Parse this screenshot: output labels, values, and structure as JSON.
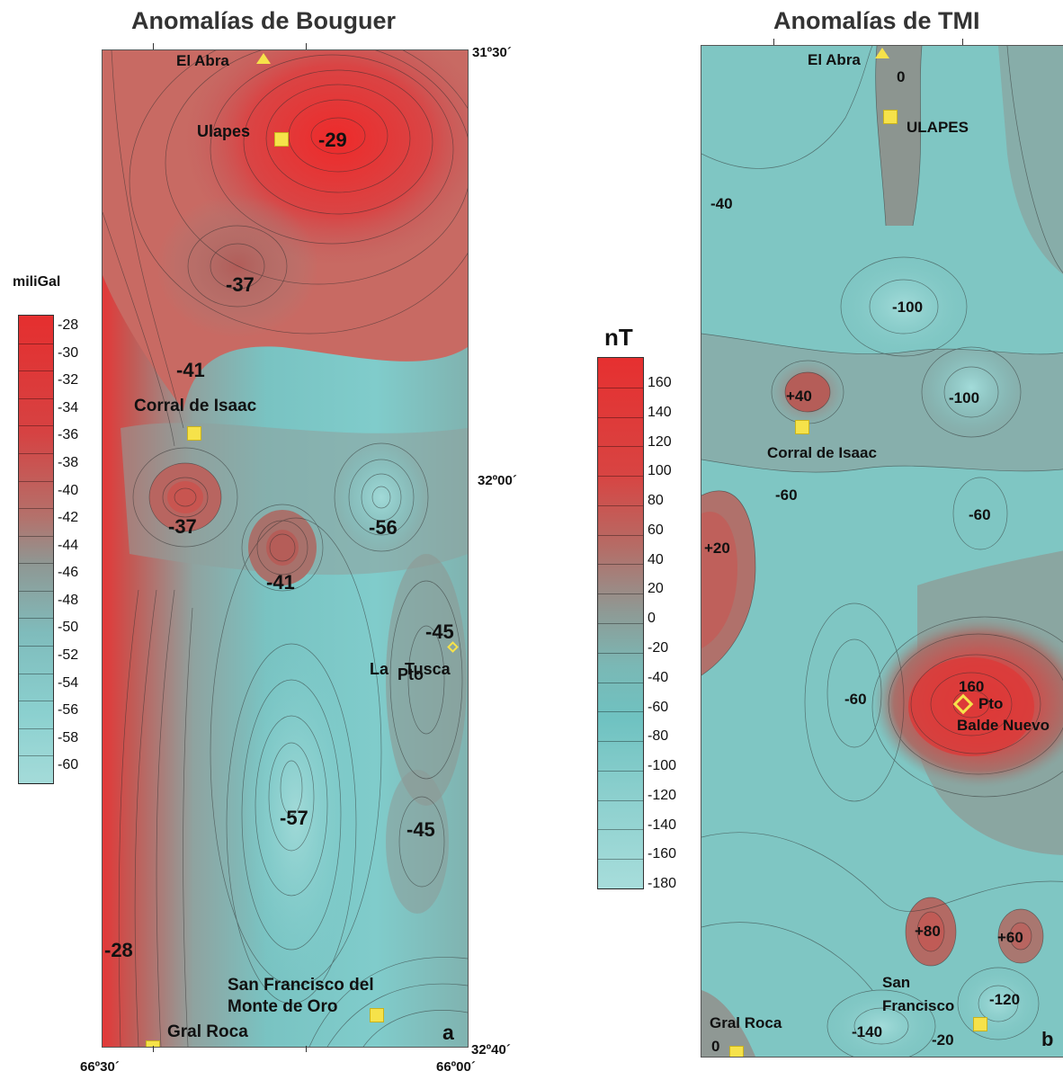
{
  "panel_a": {
    "title": "Anomalías de Bouguer",
    "letter": "a",
    "coords": {
      "top_right": "31º30´",
      "mid_right": "32º00´",
      "bottom_right": "32º40´",
      "bottom_left": "66º30´",
      "bottom_right_lon": "66º00´"
    },
    "places": {
      "el_abra": "El Abra",
      "ulapes": "Ulapes",
      "corral": "Corral de Isaac",
      "la_tusca_1": "La",
      "la_tusca_2": "Pto",
      "la_tusca_3": "Tusca",
      "sf_1": "San Francisco del",
      "sf_2": "Monte de Oro",
      "gral_roca": "Gral Roca"
    },
    "values": {
      "v29": "-29",
      "v37a": "-37",
      "v41a": "-41",
      "v37b": "-37",
      "v41b": "-41",
      "v56": "-56",
      "v45a": "-45",
      "v57": "-57",
      "v45b": "-45",
      "v28": "-28"
    },
    "colorbar": {
      "unit": "miliGal",
      "ticks": [
        "-28",
        "-30",
        "-32",
        "-34",
        "-36",
        "-38",
        "-40",
        "-42",
        "-44",
        "-46",
        "-48",
        "-50",
        "-52",
        "-54",
        "-56",
        "-58",
        "-60"
      ]
    }
  },
  "panel_b": {
    "title": "Anomalías de TMI",
    "letter": "b",
    "places": {
      "el_abra": "El Abra",
      "ulapes": "ULAPES",
      "corral": "Corral de Isaac",
      "pto": "Pto",
      "balde": "Balde Nuevo",
      "sf_1": "San",
      "sf_2": "Francisco",
      "gral_roca": "Gral Roca"
    },
    "values": {
      "v0a": "0",
      "v40": "-40",
      "v100a": "-100",
      "p40": "+40",
      "v100b": "-100",
      "v60a": "-60",
      "p20": "+20",
      "v60b": "-60",
      "v60c": "-60",
      "v160": "160",
      "p80": "+80",
      "p60": "+60",
      "v120": "-120",
      "v140": "-140",
      "v20": "-20",
      "v0b": "0"
    },
    "colorbar": {
      "unit": "nT",
      "ticks": [
        "160",
        "140",
        "120",
        "100",
        "80",
        "60",
        "40",
        "20",
        "0",
        "-20",
        "-40",
        "-60",
        "-80",
        "-100",
        "-120",
        "-140",
        "-160",
        "-180"
      ]
    }
  },
  "colors": {
    "high": "#e23a3a",
    "mid": "#8a9895",
    "low": "#7ccccb",
    "marker": "#f6e24a"
  }
}
